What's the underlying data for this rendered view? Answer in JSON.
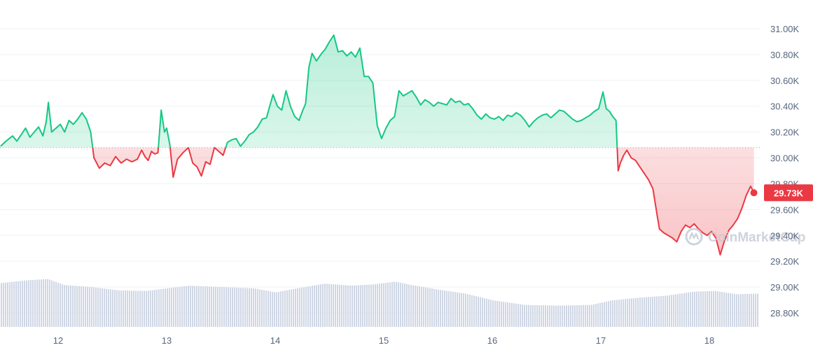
{
  "chart_data": {
    "type": "line",
    "xlabel": "",
    "ylabel": "",
    "x_ticks": [
      {
        "day": 12,
        "label": "12"
      },
      {
        "day": 13,
        "label": "13"
      },
      {
        "day": 14,
        "label": "14"
      },
      {
        "day": 15,
        "label": "15"
      },
      {
        "day": 16,
        "label": "16"
      },
      {
        "day": 17,
        "label": "17"
      },
      {
        "day": 18,
        "label": "18"
      }
    ],
    "y_ticks": [
      {
        "value": 31000,
        "label": "31.00K"
      },
      {
        "value": 30800,
        "label": "30.80K"
      },
      {
        "value": 30600,
        "label": "30.60K"
      },
      {
        "value": 30400,
        "label": "30.40K"
      },
      {
        "value": 30200,
        "label": "30.20K"
      },
      {
        "value": 30000,
        "label": "30.00K"
      },
      {
        "value": 29800,
        "label": "29.80K"
      },
      {
        "value": 29600,
        "label": "29.60K"
      },
      {
        "value": 29400,
        "label": "29.40K"
      },
      {
        "value": 29200,
        "label": "29.20K"
      },
      {
        "value": 29000,
        "label": "29.00K"
      },
      {
        "value": 28800,
        "label": "28.80K"
      }
    ],
    "ylim": [
      28700,
      31150
    ],
    "xlim": [
      11.47,
      18.44
    ],
    "baseline": 30080,
    "grid": "horizontal",
    "current_price": {
      "value": 29730,
      "label": "29.73K"
    },
    "series": [
      {
        "points": [
          [
            11.47,
            30090
          ],
          [
            11.52,
            30130
          ],
          [
            11.58,
            30170
          ],
          [
            11.62,
            30130
          ],
          [
            11.66,
            30180
          ],
          [
            11.7,
            30230
          ],
          [
            11.74,
            30160
          ],
          [
            11.78,
            30200
          ],
          [
            11.82,
            30240
          ],
          [
            11.86,
            30170
          ],
          [
            11.89,
            30280
          ],
          [
            11.91,
            30430
          ],
          [
            11.94,
            30200
          ],
          [
            11.98,
            30230
          ],
          [
            12.02,
            30260
          ],
          [
            12.06,
            30200
          ],
          [
            12.1,
            30290
          ],
          [
            12.14,
            30260
          ],
          [
            12.18,
            30300
          ],
          [
            12.22,
            30350
          ],
          [
            12.26,
            30300
          ],
          [
            12.3,
            30200
          ],
          [
            12.33,
            30000
          ],
          [
            12.38,
            29920
          ],
          [
            12.43,
            29960
          ],
          [
            12.48,
            29940
          ],
          [
            12.53,
            30010
          ],
          [
            12.58,
            29960
          ],
          [
            12.63,
            29990
          ],
          [
            12.68,
            29970
          ],
          [
            12.73,
            29990
          ],
          [
            12.77,
            30060
          ],
          [
            12.8,
            30010
          ],
          [
            12.83,
            29980
          ],
          [
            12.86,
            30050
          ],
          [
            12.89,
            30030
          ],
          [
            12.92,
            30040
          ],
          [
            12.95,
            30370
          ],
          [
            12.98,
            30200
          ],
          [
            13.0,
            30230
          ],
          [
            13.03,
            30100
          ],
          [
            13.06,
            29850
          ],
          [
            13.1,
            29990
          ],
          [
            13.15,
            30040
          ],
          [
            13.2,
            30080
          ],
          [
            13.24,
            29960
          ],
          [
            13.28,
            29930
          ],
          [
            13.32,
            29860
          ],
          [
            13.36,
            29970
          ],
          [
            13.4,
            29950
          ],
          [
            13.44,
            30080
          ],
          [
            13.48,
            30050
          ],
          [
            13.52,
            30020
          ],
          [
            13.56,
            30120
          ],
          [
            13.6,
            30140
          ],
          [
            13.64,
            30150
          ],
          [
            13.68,
            30090
          ],
          [
            13.72,
            30130
          ],
          [
            13.76,
            30180
          ],
          [
            13.8,
            30200
          ],
          [
            13.84,
            30240
          ],
          [
            13.88,
            30300
          ],
          [
            13.92,
            30310
          ],
          [
            13.95,
            30400
          ],
          [
            13.98,
            30490
          ],
          [
            14.02,
            30400
          ],
          [
            14.06,
            30370
          ],
          [
            14.1,
            30520
          ],
          [
            14.14,
            30400
          ],
          [
            14.18,
            30320
          ],
          [
            14.22,
            30290
          ],
          [
            14.25,
            30360
          ],
          [
            14.28,
            30420
          ],
          [
            14.31,
            30700
          ],
          [
            14.34,
            30810
          ],
          [
            14.38,
            30750
          ],
          [
            14.42,
            30800
          ],
          [
            14.46,
            30840
          ],
          [
            14.5,
            30900
          ],
          [
            14.54,
            30950
          ],
          [
            14.58,
            30820
          ],
          [
            14.62,
            30830
          ],
          [
            14.66,
            30790
          ],
          [
            14.7,
            30820
          ],
          [
            14.74,
            30780
          ],
          [
            14.78,
            30850
          ],
          [
            14.82,
            30630
          ],
          [
            14.86,
            30630
          ],
          [
            14.9,
            30580
          ],
          [
            14.94,
            30250
          ],
          [
            14.98,
            30150
          ],
          [
            15.02,
            30230
          ],
          [
            15.06,
            30290
          ],
          [
            15.1,
            30320
          ],
          [
            15.14,
            30520
          ],
          [
            15.18,
            30480
          ],
          [
            15.22,
            30500
          ],
          [
            15.26,
            30520
          ],
          [
            15.3,
            30470
          ],
          [
            15.34,
            30410
          ],
          [
            15.38,
            30450
          ],
          [
            15.42,
            30430
          ],
          [
            15.46,
            30400
          ],
          [
            15.5,
            30430
          ],
          [
            15.54,
            30420
          ],
          [
            15.58,
            30410
          ],
          [
            15.62,
            30460
          ],
          [
            15.66,
            30430
          ],
          [
            15.7,
            30440
          ],
          [
            15.74,
            30410
          ],
          [
            15.78,
            30420
          ],
          [
            15.82,
            30380
          ],
          [
            15.86,
            30330
          ],
          [
            15.9,
            30300
          ],
          [
            15.94,
            30340
          ],
          [
            15.98,
            30310
          ],
          [
            16.02,
            30300
          ],
          [
            16.06,
            30320
          ],
          [
            16.1,
            30290
          ],
          [
            16.14,
            30330
          ],
          [
            16.18,
            30320
          ],
          [
            16.22,
            30350
          ],
          [
            16.26,
            30330
          ],
          [
            16.3,
            30290
          ],
          [
            16.34,
            30240
          ],
          [
            16.38,
            30280
          ],
          [
            16.42,
            30310
          ],
          [
            16.46,
            30330
          ],
          [
            16.5,
            30340
          ],
          [
            16.54,
            30310
          ],
          [
            16.58,
            30340
          ],
          [
            16.62,
            30370
          ],
          [
            16.66,
            30360
          ],
          [
            16.7,
            30330
          ],
          [
            16.74,
            30300
          ],
          [
            16.78,
            30280
          ],
          [
            16.82,
            30290
          ],
          [
            16.86,
            30310
          ],
          [
            16.9,
            30330
          ],
          [
            16.94,
            30360
          ],
          [
            16.98,
            30380
          ],
          [
            17.02,
            30510
          ],
          [
            17.05,
            30380
          ],
          [
            17.08,
            30360
          ],
          [
            17.11,
            30320
          ],
          [
            17.14,
            30290
          ],
          [
            17.16,
            29900
          ],
          [
            17.18,
            29960
          ],
          [
            17.21,
            30020
          ],
          [
            17.24,
            30060
          ],
          [
            17.28,
            30000
          ],
          [
            17.32,
            29980
          ],
          [
            17.36,
            29930
          ],
          [
            17.4,
            29880
          ],
          [
            17.44,
            29830
          ],
          [
            17.48,
            29760
          ],
          [
            17.52,
            29550
          ],
          [
            17.54,
            29450
          ],
          [
            17.58,
            29420
          ],
          [
            17.62,
            29400
          ],
          [
            17.66,
            29380
          ],
          [
            17.7,
            29350
          ],
          [
            17.74,
            29430
          ],
          [
            17.78,
            29480
          ],
          [
            17.82,
            29460
          ],
          [
            17.86,
            29490
          ],
          [
            17.9,
            29450
          ],
          [
            17.94,
            29420
          ],
          [
            17.98,
            29400
          ],
          [
            18.02,
            29430
          ],
          [
            18.06,
            29380
          ],
          [
            18.1,
            29250
          ],
          [
            18.14,
            29360
          ],
          [
            18.18,
            29440
          ],
          [
            18.22,
            29480
          ],
          [
            18.26,
            29530
          ],
          [
            18.3,
            29610
          ],
          [
            18.34,
            29710
          ],
          [
            18.38,
            29780
          ],
          [
            18.41,
            29730
          ]
        ]
      }
    ],
    "volume": {
      "points": [
        [
          11.47,
          0.66
        ],
        [
          11.7,
          0.7
        ],
        [
          11.9,
          0.72
        ],
        [
          12.05,
          0.63
        ],
        [
          12.3,
          0.6
        ],
        [
          12.55,
          0.55
        ],
        [
          12.8,
          0.54
        ],
        [
          13.0,
          0.58
        ],
        [
          13.2,
          0.62
        ],
        [
          13.5,
          0.6
        ],
        [
          13.8,
          0.58
        ],
        [
          14.0,
          0.52
        ],
        [
          14.2,
          0.58
        ],
        [
          14.45,
          0.65
        ],
        [
          14.7,
          0.62
        ],
        [
          14.9,
          0.64
        ],
        [
          15.1,
          0.68
        ],
        [
          15.25,
          0.63
        ],
        [
          15.5,
          0.56
        ],
        [
          15.75,
          0.5
        ],
        [
          16.0,
          0.4
        ],
        [
          16.3,
          0.33
        ],
        [
          16.6,
          0.32
        ],
        [
          16.9,
          0.33
        ],
        [
          17.1,
          0.4
        ],
        [
          17.35,
          0.44
        ],
        [
          17.6,
          0.47
        ],
        [
          17.85,
          0.53
        ],
        [
          18.05,
          0.54
        ],
        [
          18.25,
          0.49
        ],
        [
          18.41,
          0.5
        ]
      ]
    },
    "colors": {
      "up": "#16c784",
      "down": "#ea3943",
      "grid": "#eff2f5",
      "volume": "#cfd6e4",
      "baseline": "#9aa3b2"
    }
  },
  "watermark": {
    "icon": "coinmarketcap-logo-icon",
    "text": "CoinMarketCap"
  }
}
